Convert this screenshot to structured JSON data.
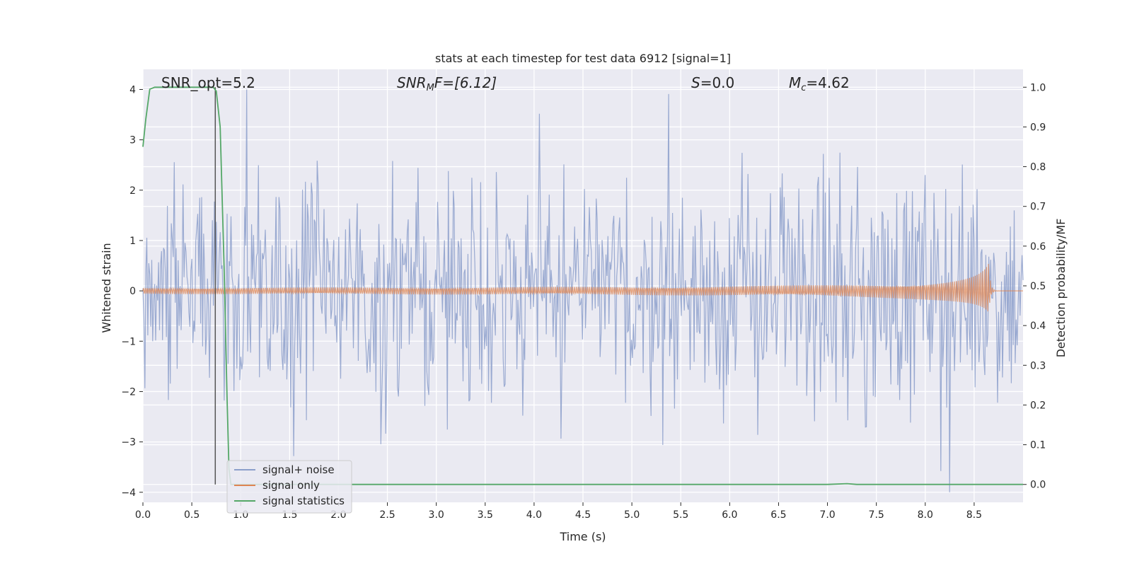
{
  "chart_data": {
    "type": "line",
    "title": "stats at each timestep for test data 6912 [signal=1]",
    "xlabel": "Time (s)",
    "ylabel_left": "Whitened strain",
    "ylabel_right": "Detection probability/MF",
    "xlim": [
      0.0,
      9.0
    ],
    "ylim_left": [
      -4.2,
      4.4
    ],
    "ylim_right": [
      -0.045,
      1.045
    ],
    "x_ticks": [
      "0.0",
      "0.5",
      "1.0",
      "1.5",
      "2.0",
      "2.5",
      "3.0",
      "3.5",
      "4.0",
      "4.5",
      "5.0",
      "5.5",
      "6.0",
      "6.5",
      "7.0",
      "7.5",
      "8.0",
      "8.5"
    ],
    "y_left_ticks": [
      "4",
      "3",
      "2",
      "1",
      "0",
      "−1",
      "−2",
      "−3",
      "−4"
    ],
    "y_right_ticks": [
      "1.0",
      "0.9",
      "0.8",
      "0.7",
      "0.6",
      "0.5",
      "0.4",
      "0.3",
      "0.2",
      "0.1",
      "0.0"
    ],
    "grid": true,
    "legend_position": "bottom-left",
    "annotations": {
      "snr_opt": "SNR_opt=5.2",
      "snr_mf_sym": "SNR",
      "snr_mf_sub": "M",
      "snr_mf_rest": "F=[6.12]",
      "s_sym": "S",
      "s_rest": "=0.0",
      "mc_sym": "M",
      "mc_sub": "c",
      "mc_rest": "=4.62"
    },
    "vertical_marker_x": 0.74,
    "series": [
      {
        "name": "signal+ noise",
        "color": "#8c9fcb",
        "axis": "left",
        "kind": "noise",
        "x_range": [
          0.0,
          9.0
        ],
        "samples": 900,
        "typical_envelope": 1.5,
        "max_abs": 4.0,
        "min_value": -3.75
      },
      {
        "name": "signal only",
        "color": "#dd8452",
        "axis": "left",
        "kind": "chirp",
        "start_x": 0.0,
        "merger_x": 8.65,
        "peak_amplitude": 0.55,
        "end_x": 9.0
      },
      {
        "name": "signal statistics",
        "color": "#55a868",
        "axis": "right",
        "kind": "line",
        "x": [
          0.0,
          0.03,
          0.07,
          0.12,
          0.3,
          0.5,
          0.66,
          0.72,
          0.75,
          0.79,
          0.83,
          0.86,
          0.88,
          0.9,
          0.95,
          2.0,
          4.0,
          5.0,
          7.0,
          7.2,
          7.3,
          8.0,
          9.0
        ],
        "values": [
          0.85,
          0.92,
          0.995,
          1.0,
          1.0,
          1.0,
          1.0,
          1.0,
          0.99,
          0.9,
          0.55,
          0.22,
          0.04,
          0.0,
          0.0,
          0.0,
          0.0,
          0.0,
          0.0,
          0.002,
          0.0,
          0.0,
          0.0
        ]
      }
    ]
  }
}
